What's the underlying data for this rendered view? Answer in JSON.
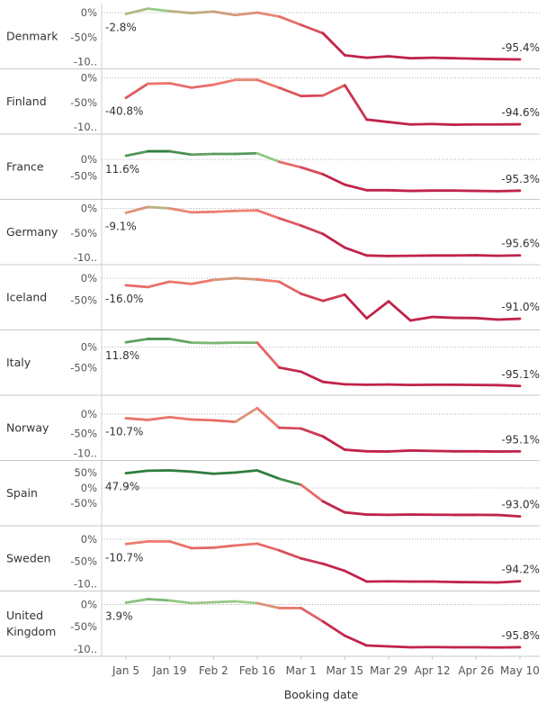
{
  "chart_data": {
    "type": "line",
    "xlabel": "Booking date",
    "x_ticks": [
      "Jan 5",
      "Jan 19",
      "Feb 2",
      "Feb 16",
      "Mar 1",
      "Mar 15",
      "Mar 29",
      "Apr 12",
      "Apr 26",
      "May 10"
    ],
    "x": [
      "Jan 5",
      "Jan 12",
      "Jan 19",
      "Jan 26",
      "Feb 2",
      "Feb 9",
      "Feb 16",
      "Feb 23",
      "Mar 1",
      "Mar 8",
      "Mar 15",
      "Mar 22",
      "Mar 29",
      "Apr 5",
      "Apr 12",
      "Apr 19",
      "Apr 26",
      "May 3",
      "May 10"
    ],
    "y_unit": "%",
    "colors": {
      "positive": "#2e7d3e",
      "neutral": "#9acd8a",
      "mild_negative": "#f08070",
      "negative": "#c0234a"
    },
    "series": [
      {
        "name": "Denmark",
        "ylim": [
          -100,
          0
        ],
        "yticks": [
          "0%",
          "-50%",
          "-10.."
        ],
        "start_label": "-2.8%",
        "end_label": "-95.4%",
        "values": [
          -2.8,
          8,
          3,
          -1,
          2,
          -5,
          0,
          -8,
          -25,
          -42,
          -87,
          -92,
          -89,
          -93,
          -92,
          -93,
          -94,
          -95,
          -95.4
        ]
      },
      {
        "name": "Finland",
        "ylim": [
          -100,
          0
        ],
        "yticks": [
          "0%",
          "-50%",
          "-10.."
        ],
        "start_label": "-40.8%",
        "end_label": "-94.6%",
        "values": [
          -40.8,
          -12,
          -11,
          -20,
          -14,
          -4,
          -4,
          -20,
          -37,
          -36,
          -15,
          -85,
          -90,
          -95,
          -94,
          -95.5,
          -95,
          -95,
          -94.6
        ]
      },
      {
        "name": "France",
        "ylim": [
          -100,
          50
        ],
        "yticks": [
          "0%",
          "-50%"
        ],
        "start_label": "11.6%",
        "end_label": "-95.3%",
        "values": [
          11.6,
          25,
          25,
          15,
          17,
          17,
          19,
          -7,
          -24,
          -45,
          -77,
          -94,
          -94,
          -96,
          -95,
          -95,
          -96,
          -97,
          -95.3
        ]
      },
      {
        "name": "Germany",
        "ylim": [
          -100,
          0
        ],
        "yticks": [
          "0%",
          "-50%",
          "-10.."
        ],
        "start_label": "-9.1%",
        "end_label": "-95.6%",
        "values": [
          -9.1,
          3,
          0,
          -8,
          -7,
          -5,
          -4,
          -20,
          -35,
          -52,
          -80,
          -96,
          -97,
          -96.5,
          -96,
          -96,
          -95.5,
          -96.5,
          -95.6
        ]
      },
      {
        "name": "Iceland",
        "ylim": [
          -100,
          10
        ],
        "yticks": [
          "0%",
          "-50%"
        ],
        "start_label": "-16.0%",
        "end_label": "-91.0%",
        "values": [
          -16.0,
          -20,
          -8,
          -13,
          -4,
          0,
          -3,
          -8,
          -35,
          -51,
          -37,
          -90,
          -52,
          -95,
          -87,
          -89,
          -89.5,
          -93,
          -91.0
        ]
      },
      {
        "name": "Italy",
        "ylim": [
          -100,
          20
        ],
        "yticks": [
          "0%",
          "-50%"
        ],
        "start_label": "11.8%",
        "end_label": "-95.1%",
        "values": [
          11.8,
          20,
          20,
          11,
          10,
          11,
          11,
          -50,
          -60,
          -85,
          -91,
          -92,
          -91.5,
          -92.5,
          -92,
          -92,
          -92.5,
          -93,
          -95.1
        ]
      },
      {
        "name": "Norway",
        "ylim": [
          -100,
          25
        ],
        "yticks": [
          "0%",
          "-50%",
          "-10.."
        ],
        "start_label": "-10.7%",
        "end_label": "-95.1%",
        "values": [
          -10.7,
          -15,
          -8,
          -14,
          -16,
          -20,
          15,
          -35,
          -37,
          -57,
          -91,
          -95,
          -95.5,
          -93,
          -94,
          -95,
          -95,
          -95.5,
          -95.1
        ]
      },
      {
        "name": "Spain",
        "ylim": [
          -100,
          60
        ],
        "yticks": [
          "50%",
          "0%",
          "-50%"
        ],
        "start_label": "47.9%",
        "end_label": "-93.0%",
        "values": [
          47.9,
          56,
          57,
          53,
          46,
          50,
          57,
          30,
          10,
          -44,
          -80,
          -87,
          -88,
          -87,
          -87.5,
          -88,
          -88,
          -88.5,
          -93.0
        ]
      },
      {
        "name": "Sweden",
        "ylim": [
          -100,
          10
        ],
        "yticks": [
          "0%",
          "-50%",
          "-10.."
        ],
        "start_label": "-10.7%",
        "end_label": "-94.2%",
        "values": [
          -10.7,
          -5,
          -5,
          -20,
          -19,
          -14,
          -10,
          -25,
          -43,
          -55,
          -71,
          -95,
          -94.5,
          -95,
          -95,
          -96,
          -96.5,
          -97,
          -94.2
        ]
      },
      {
        "name": "United Kingdom",
        "ylim": [
          -100,
          10
        ],
        "yticks": [
          "0%",
          "-50%",
          "-10.."
        ],
        "start_label": "3.9%",
        "end_label": "-95.8%",
        "values": [
          3.9,
          12,
          9,
          3,
          5,
          7,
          3,
          -8,
          -8,
          -38,
          -70,
          -92,
          -94,
          -96,
          -95.5,
          -96,
          -96,
          -96.5,
          -95.8
        ]
      }
    ]
  }
}
